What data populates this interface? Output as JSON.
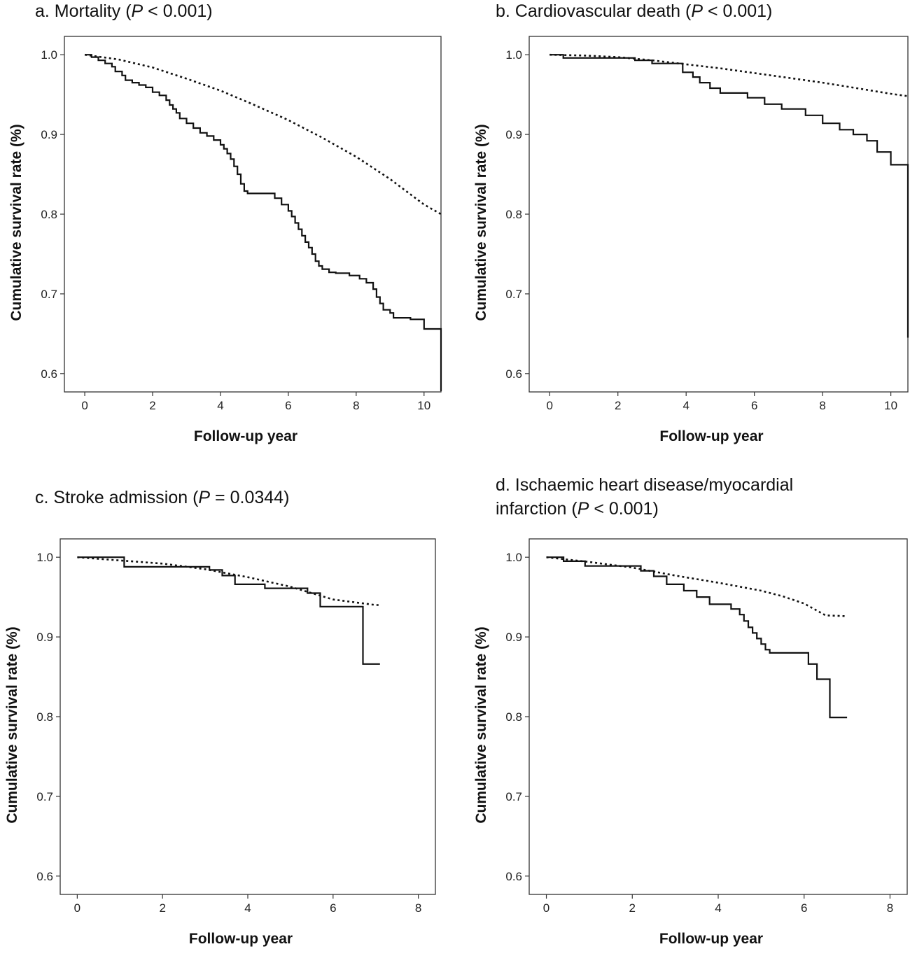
{
  "panels": [
    {
      "title_prefix": "a. Mortality (",
      "title_p": "P",
      "title_suffix": " <  0.001)",
      "title_line2": ""
    },
    {
      "title_prefix": "b. Cardiovascular death (",
      "title_p": "P",
      "title_suffix": " < 0.001)",
      "title_line2": ""
    },
    {
      "title_prefix": "c. Stroke admission (",
      "title_p": "P",
      "title_suffix": " = 0.0344)",
      "title_line2": ""
    },
    {
      "title_prefix": "d. Ischaemic heart disease/myocardial",
      "title_p": "",
      "title_suffix": "",
      "title_line2_prefix": "infarction (",
      "title_line2_p": "P",
      "title_line2_suffix": " < 0.001)"
    }
  ],
  "chart_data": [
    {
      "type": "line",
      "title": "a. Mortality (P <  0.001)",
      "xlabel": "Follow-up year",
      "ylabel": "Cumulative survival rate (%)",
      "xlim": [
        -0.6,
        10.5
      ],
      "ylim": [
        0.577,
        1.023
      ],
      "xticks": [
        0,
        2,
        4,
        6,
        8,
        10
      ],
      "yticks": [
        0.6,
        0.7,
        0.8,
        0.9,
        1.0
      ],
      "ytick_labels": [
        "0.6",
        "0.7",
        "0.8",
        "0.9",
        "1.0"
      ],
      "grid": false,
      "series": [
        {
          "style": "solid",
          "step": true,
          "x": [
            0,
            0.2,
            0.4,
            0.6,
            0.8,
            0.9,
            1.1,
            1.2,
            1.4,
            1.6,
            1.8,
            2.0,
            2.2,
            2.4,
            2.5,
            2.6,
            2.7,
            2.8,
            3.0,
            3.2,
            3.4,
            3.6,
            3.8,
            4.0,
            4.1,
            4.2,
            4.3,
            4.4,
            4.5,
            4.6,
            4.7,
            4.8,
            5.6,
            5.8,
            6.0,
            6.1,
            6.2,
            6.3,
            6.4,
            6.5,
            6.6,
            6.7,
            6.8,
            6.9,
            7.0,
            7.2,
            7.4,
            7.8,
            8.1,
            8.3,
            8.5,
            8.6,
            8.7,
            8.8,
            9.0,
            9.1,
            9.6,
            10.0,
            10.5,
            10.5
          ],
          "y": [
            1.0,
            0.997,
            0.993,
            0.989,
            0.985,
            0.979,
            0.974,
            0.968,
            0.965,
            0.962,
            0.959,
            0.953,
            0.949,
            0.943,
            0.937,
            0.932,
            0.927,
            0.92,
            0.914,
            0.908,
            0.902,
            0.898,
            0.893,
            0.887,
            0.882,
            0.876,
            0.869,
            0.86,
            0.85,
            0.838,
            0.829,
            0.826,
            0.82,
            0.812,
            0.804,
            0.797,
            0.789,
            0.781,
            0.773,
            0.765,
            0.758,
            0.75,
            0.741,
            0.735,
            0.731,
            0.727,
            0.726,
            0.723,
            0.719,
            0.714,
            0.706,
            0.696,
            0.688,
            0.68,
            0.676,
            0.67,
            0.668,
            0.656,
            0.656,
            0.578
          ]
        },
        {
          "style": "dotted",
          "step": false,
          "x": [
            0,
            1,
            2,
            3,
            4,
            5,
            6,
            7,
            8,
            9,
            10,
            10.5
          ],
          "y": [
            1.0,
            0.994,
            0.984,
            0.97,
            0.955,
            0.937,
            0.918,
            0.896,
            0.872,
            0.844,
            0.812,
            0.8
          ]
        }
      ]
    },
    {
      "type": "line",
      "title": "b. Cardiovascular death (P < 0.001)",
      "xlabel": "Follow-up year",
      "ylabel": "Cumulative survival rate (%)",
      "xlim": [
        -0.6,
        10.5
      ],
      "ylim": [
        0.577,
        1.023
      ],
      "xticks": [
        0,
        2,
        4,
        6,
        8,
        10
      ],
      "yticks": [
        0.6,
        0.7,
        0.8,
        0.9,
        1.0
      ],
      "ytick_labels": [
        "0.6",
        "0.7",
        "0.8",
        "0.9",
        "1.0"
      ],
      "grid": false,
      "series": [
        {
          "style": "solid",
          "step": true,
          "x": [
            0,
            0.4,
            2.5,
            3.0,
            3.9,
            4.2,
            4.4,
            4.7,
            5.0,
            5.8,
            6.3,
            6.8,
            7.5,
            8.0,
            8.5,
            8.9,
            9.3,
            9.6,
            10.0,
            10.5,
            10.5
          ],
          "y": [
            1.0,
            0.996,
            0.993,
            0.989,
            0.978,
            0.972,
            0.965,
            0.958,
            0.952,
            0.946,
            0.938,
            0.932,
            0.924,
            0.914,
            0.906,
            0.9,
            0.892,
            0.878,
            0.862,
            0.86,
            0.645
          ]
        },
        {
          "style": "dotted",
          "step": false,
          "x": [
            0,
            1,
            2,
            3,
            4,
            5,
            6,
            7,
            8,
            9,
            10,
            10.5
          ],
          "y": [
            1.0,
            0.999,
            0.997,
            0.993,
            0.988,
            0.983,
            0.977,
            0.971,
            0.965,
            0.958,
            0.951,
            0.948
          ]
        }
      ]
    },
    {
      "type": "line",
      "title": "c. Stroke admission (P = 0.0344)",
      "xlabel": "Follow-up year",
      "ylabel": "Cumulative survival rate (%)",
      "xlim": [
        -0.4,
        8.4
      ],
      "ylim": [
        0.577,
        1.023
      ],
      "xticks": [
        0,
        2,
        4,
        6,
        8
      ],
      "yticks": [
        0.6,
        0.7,
        0.8,
        0.9,
        1.0
      ],
      "ytick_labels": [
        "0.6",
        "0.7",
        "0.8",
        "0.9",
        "1.0"
      ],
      "grid": false,
      "series": [
        {
          "style": "solid",
          "step": true,
          "x": [
            0,
            1.1,
            3.1,
            3.4,
            3.7,
            4.4,
            5.4,
            5.7,
            6.7,
            7.1
          ],
          "y": [
            1.0,
            0.988,
            0.984,
            0.977,
            0.966,
            0.961,
            0.955,
            0.938,
            0.866,
            0.866
          ]
        },
        {
          "style": "dotted",
          "step": false,
          "x": [
            0,
            1,
            2,
            3,
            4,
            5,
            6,
            7,
            7.1
          ],
          "y": [
            1.0,
            0.996,
            0.992,
            0.985,
            0.975,
            0.963,
            0.947,
            0.94,
            0.94
          ]
        }
      ]
    },
    {
      "type": "line",
      "title": "d. Ischaemic heart disease/myocardial infarction (P < 0.001)",
      "xlabel": "Follow-up year",
      "ylabel": "Cumulative survival rate (%)",
      "xlim": [
        -0.4,
        8.4
      ],
      "ylim": [
        0.577,
        1.023
      ],
      "xticks": [
        0,
        2,
        4,
        6,
        8
      ],
      "yticks": [
        0.6,
        0.7,
        0.8,
        0.9,
        1.0
      ],
      "ytick_labels": [
        "0.6",
        "0.7",
        "0.8",
        "0.9",
        "1.0"
      ],
      "grid": false,
      "series": [
        {
          "style": "solid",
          "step": true,
          "x": [
            0,
            0.4,
            0.9,
            2.2,
            2.5,
            2.8,
            3.2,
            3.5,
            3.8,
            4.3,
            4.5,
            4.6,
            4.7,
            4.8,
            4.9,
            5.0,
            5.1,
            5.2,
            5.4,
            6.1,
            6.3,
            6.6,
            7.0
          ],
          "y": [
            1.0,
            0.995,
            0.989,
            0.983,
            0.976,
            0.966,
            0.958,
            0.95,
            0.941,
            0.935,
            0.928,
            0.92,
            0.912,
            0.905,
            0.898,
            0.891,
            0.884,
            0.88,
            0.88,
            0.866,
            0.847,
            0.799,
            0.799
          ]
        },
        {
          "style": "dotted",
          "step": false,
          "x": [
            0,
            1,
            2,
            3,
            4,
            5,
            5.5,
            6,
            6.5,
            7
          ],
          "y": [
            1.0,
            0.994,
            0.987,
            0.977,
            0.968,
            0.958,
            0.951,
            0.942,
            0.927,
            0.926
          ]
        }
      ]
    }
  ]
}
